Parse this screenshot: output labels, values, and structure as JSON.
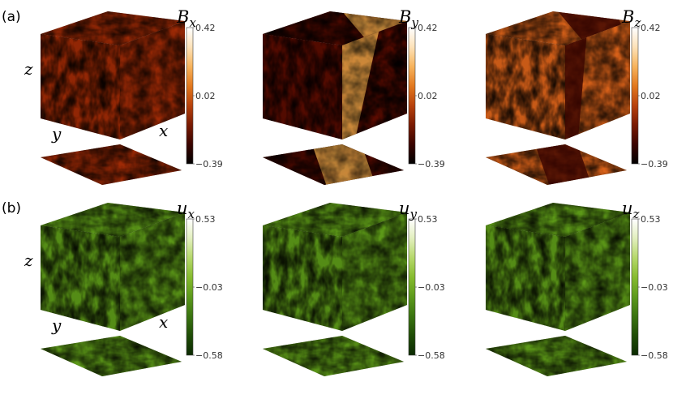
{
  "rows": [
    {
      "label": "(a)",
      "axes": {
        "z": "z",
        "y": "y",
        "x": "x"
      },
      "palette": "heat",
      "panels": [
        {
          "symbol": "B",
          "subscript": "x",
          "colorbar": {
            "max": "0.42",
            "mid": "0.02",
            "min": "−0.39"
          },
          "pattern": "uniform"
        },
        {
          "symbol": "B",
          "subscript": "y",
          "colorbar": {
            "max": "0.42",
            "mid": "0.02",
            "min": "−0.39"
          },
          "pattern": "band-bright"
        },
        {
          "symbol": "B",
          "subscript": "z",
          "colorbar": {
            "max": "0.42",
            "mid": "0.02",
            "min": "−0.39"
          },
          "pattern": "band-dark"
        }
      ]
    },
    {
      "label": "(b)",
      "axes": {
        "z": "z",
        "y": "y",
        "x": "x"
      },
      "palette": "green",
      "panels": [
        {
          "symbol": "u",
          "subscript": "x",
          "colorbar": {
            "max": "0.53",
            "mid": "−0.03",
            "min": "−0.58"
          },
          "pattern": "uniform"
        },
        {
          "symbol": "u",
          "subscript": "y",
          "colorbar": {
            "max": "0.53",
            "mid": "−0.03",
            "min": "−0.58"
          },
          "pattern": "uniform"
        },
        {
          "symbol": "u",
          "subscript": "z",
          "colorbar": {
            "max": "0.53",
            "mid": "−0.03",
            "min": "−0.58"
          },
          "pattern": "uniform"
        }
      ]
    }
  ],
  "palettes": {
    "heat": [
      "#000000",
      "#3a0400",
      "#7a1a02",
      "#b8420c",
      "#e2781e",
      "#f7b35c",
      "#fde2b8",
      "#ffffff"
    ],
    "green": [
      "#0b2a02",
      "#1f4c06",
      "#3a7410",
      "#5d9a1c",
      "#86bb2e",
      "#b5d86a",
      "#e2efbd",
      "#ffffff"
    ]
  }
}
